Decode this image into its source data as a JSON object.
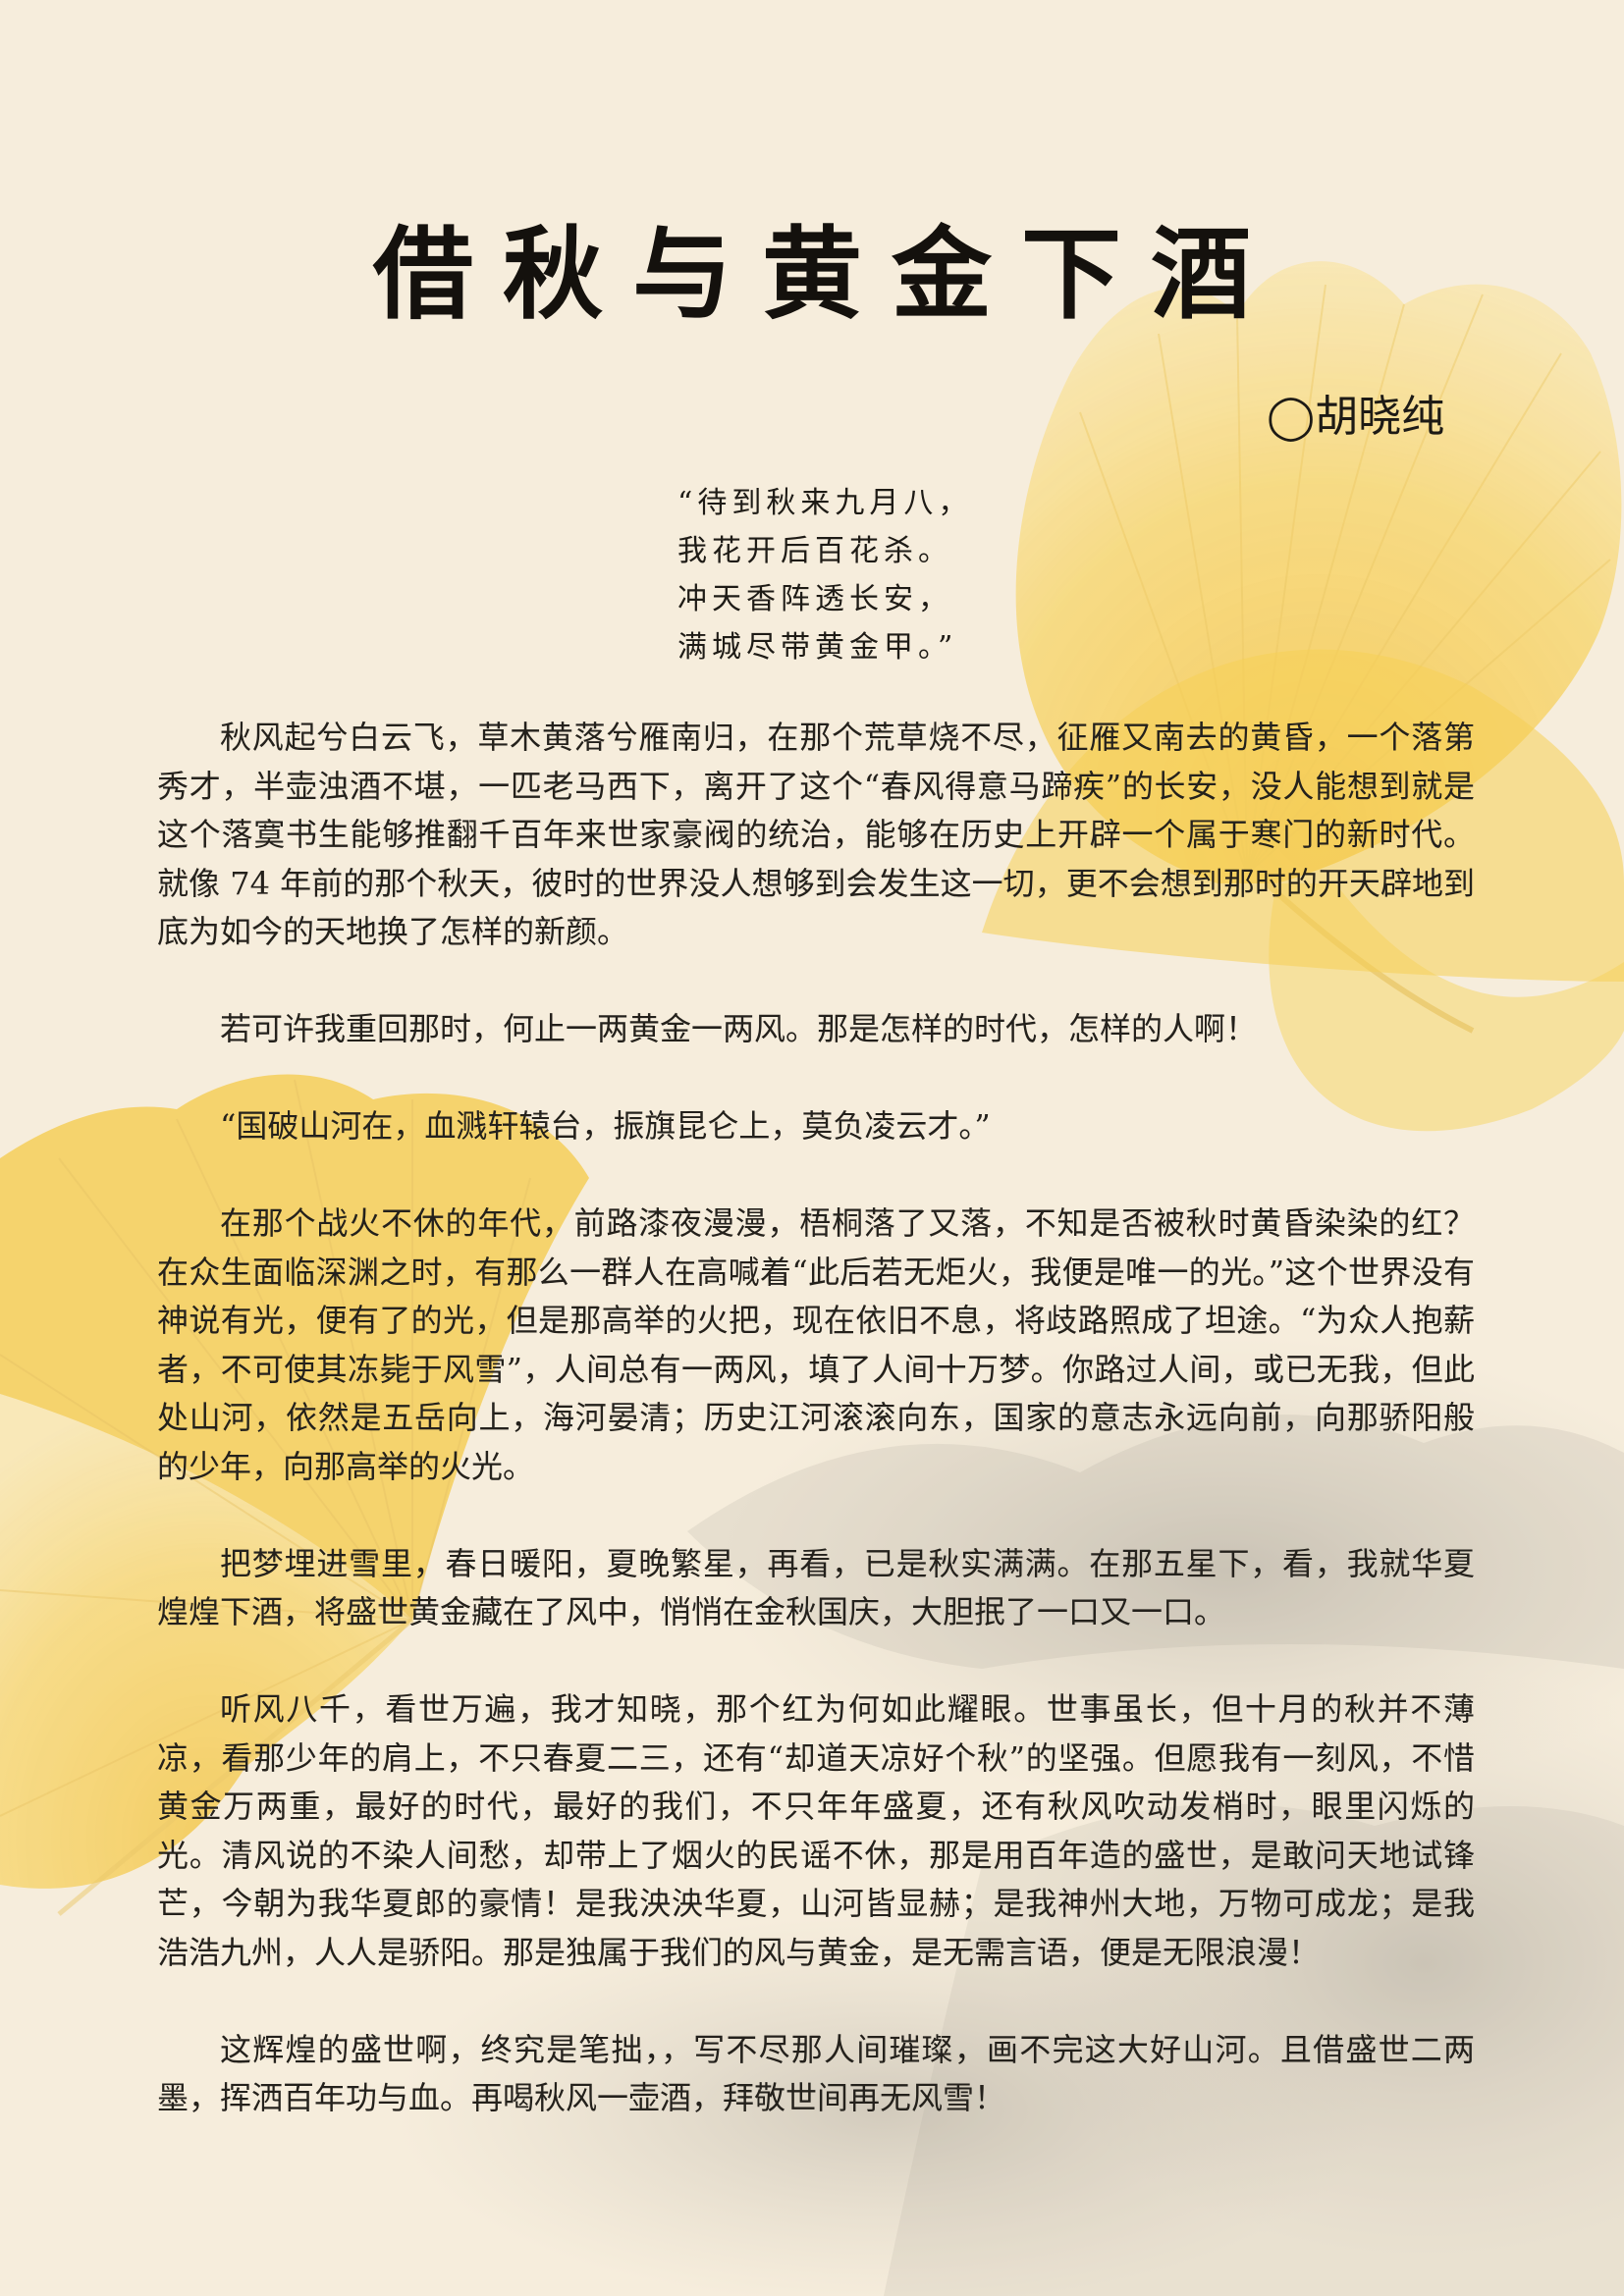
{
  "title": "借秋与黄金下酒",
  "author": "◯胡晓纯",
  "poem": [
    "“待到秋来九月八，",
    "我花开后百花杀。",
    "冲天香阵透长安，",
    "满城尽带黄金甲。”"
  ],
  "paragraphs": [
    "秋风起兮白云飞，草木黄落兮雁南归，在那个荒草烧不尽，征雁又南去的黄昏，一个落第秀才，半壶浊酒不堪，一匹老马西下，离开了这个“春风得意马蹄疾”的长安，没人能想到就是这个落寞书生能够推翻千百年来世家豪阀的统治，能够在历史上开辟一个属于寒门的新时代。就像 74 年前的那个秋天，彼时的世界没人想够到会发生这一切，更不会想到那时的开天辟地到底为如今的天地换了怎样的新颜。",
    "若可许我重回那时，何止一两黄金一两风。那是怎样的时代，怎样的人啊！",
    "“国破山河在，血溅轩辕台，振旗昆仑上，莫负凌云才。”",
    "在那个战火不休的年代，前路漆夜漫漫，梧桐落了又落，不知是否被秋时黄昏染染的红？在众生面临深渊之时，有那么一群人在高喊着“此后若无炬火，我便是唯一的光。”这个世界没有神说有光，便有了的光，但是那高举的火把，现在依旧不息，将歧路照成了坦途。“为众人抱薪者，不可使其冻毙于风雪”，人间总有一两风，填了人间十万梦。你路过人间，或已无我，但此处山河，依然是五岳向上，海河晏清；历史江河滚滚向东，国家的意志永远向前，向那骄阳般的少年，向那高举的火光。",
    "把梦埋进雪里，春日暖阳，夏晚繁星，再看，已是秋实满满。在那五星下，看，我就华夏煌煌下酒，将盛世黄金藏在了风中，悄悄在金秋国庆，大胆抿了一口又一口。",
    "听风八千，看世万遍，我才知晓，那个红为何如此耀眼。世事虽长，但十月的秋并不薄凉，看那少年的肩上，不只春夏二三，还有“却道天凉好个秋”的坚强。但愿我有一刻风，不惜黄金万两重，最好的时代，最好的我们，不只年年盛夏，还有秋风吹动发梢时，眼里闪烁的光。清风说的不染人间愁，却带上了烟火的民谣不休，那是用百年造的盛世，是敢问天地试锋芒，今朝为我华夏郎的豪情！是我泱泱华夏，山河皆显赫；是我神州大地，万物可成龙；是我浩浩九州，人人是骄阳。那是独属于我们的风与黄金，是无需言语，便是无限浪漫！",
    "这辉煌的盛世啊，终究是笔拙，，写不尽那人间璀璨，画不完这大好山河。且借盛世二两墨，挥洒百年功与血。再喝秋风一壶酒，拜敬世间再无风雪！"
  ],
  "colors": {
    "background": "#f6eddc",
    "ginkgo": "#f6cf55",
    "ink": "#2a2620"
  }
}
